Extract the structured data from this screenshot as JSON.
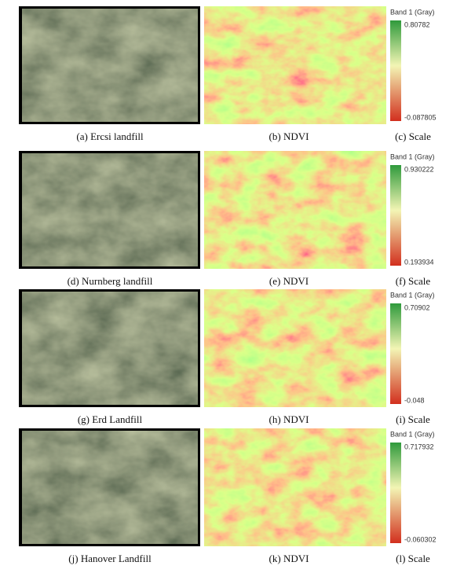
{
  "panels": [
    {
      "image_caption": "(a) Ercsi landfill",
      "ndvi_caption": "(b) NDVI",
      "scale_caption": "(c) Scale",
      "scale": {
        "title": "Band 1 (Gray)",
        "max": "0.80782",
        "min": "-0.087805"
      }
    },
    {
      "image_caption": "(d) Nurnberg landfill",
      "ndvi_caption": "(e) NDVI",
      "scale_caption": "(f) Scale",
      "scale": {
        "title": "Band 1 (Gray)",
        "max": "0.930222",
        "min": "0.193934"
      }
    },
    {
      "image_caption": "(g) Erd Landfill",
      "ndvi_caption": "(h) NDVI",
      "scale_caption": "(i) Scale",
      "scale": {
        "title": "Band 1 (Gray)",
        "max": "0.70902",
        "min": "-0.048"
      }
    },
    {
      "image_caption": "(j) Hanover Landfill",
      "ndvi_caption": "(k) NDVI",
      "scale_caption": "(l) Scale",
      "scale": {
        "title": "Band 1 (Gray)",
        "max": "0.717932",
        "min": "-0.060302"
      }
    }
  ]
}
